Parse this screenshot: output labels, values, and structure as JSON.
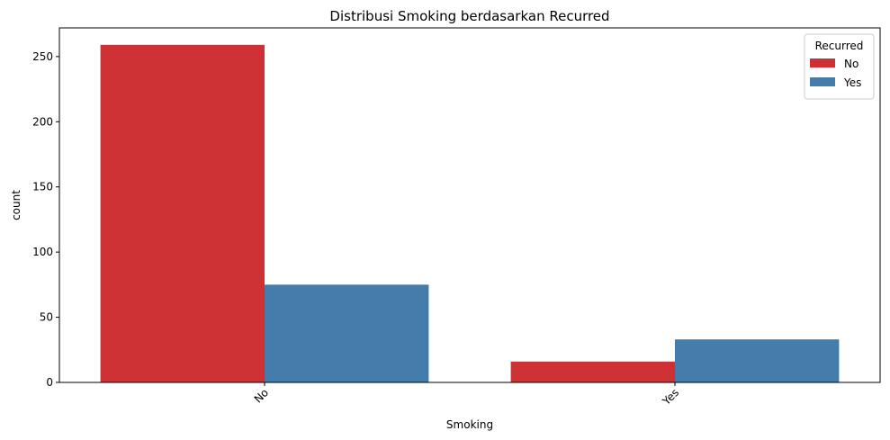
{
  "chart_data": {
    "type": "bar",
    "title": "Distribusi Smoking berdasarkan Recurred",
    "xlabel": "Smoking",
    "ylabel": "count",
    "categories": [
      "No",
      "Yes"
    ],
    "series": [
      {
        "name": "No",
        "values": [
          259,
          16
        ],
        "color": "#cd3134"
      },
      {
        "name": "Yes",
        "values": [
          75,
          33
        ],
        "color": "#447dab"
      }
    ],
    "ylim": [
      0,
      272
    ],
    "yticks": [
      0,
      50,
      100,
      150,
      200,
      250
    ],
    "xtick_rotation_deg": 45,
    "grid": false,
    "legend": {
      "title": "Recurred",
      "placement": "top-right"
    }
  }
}
